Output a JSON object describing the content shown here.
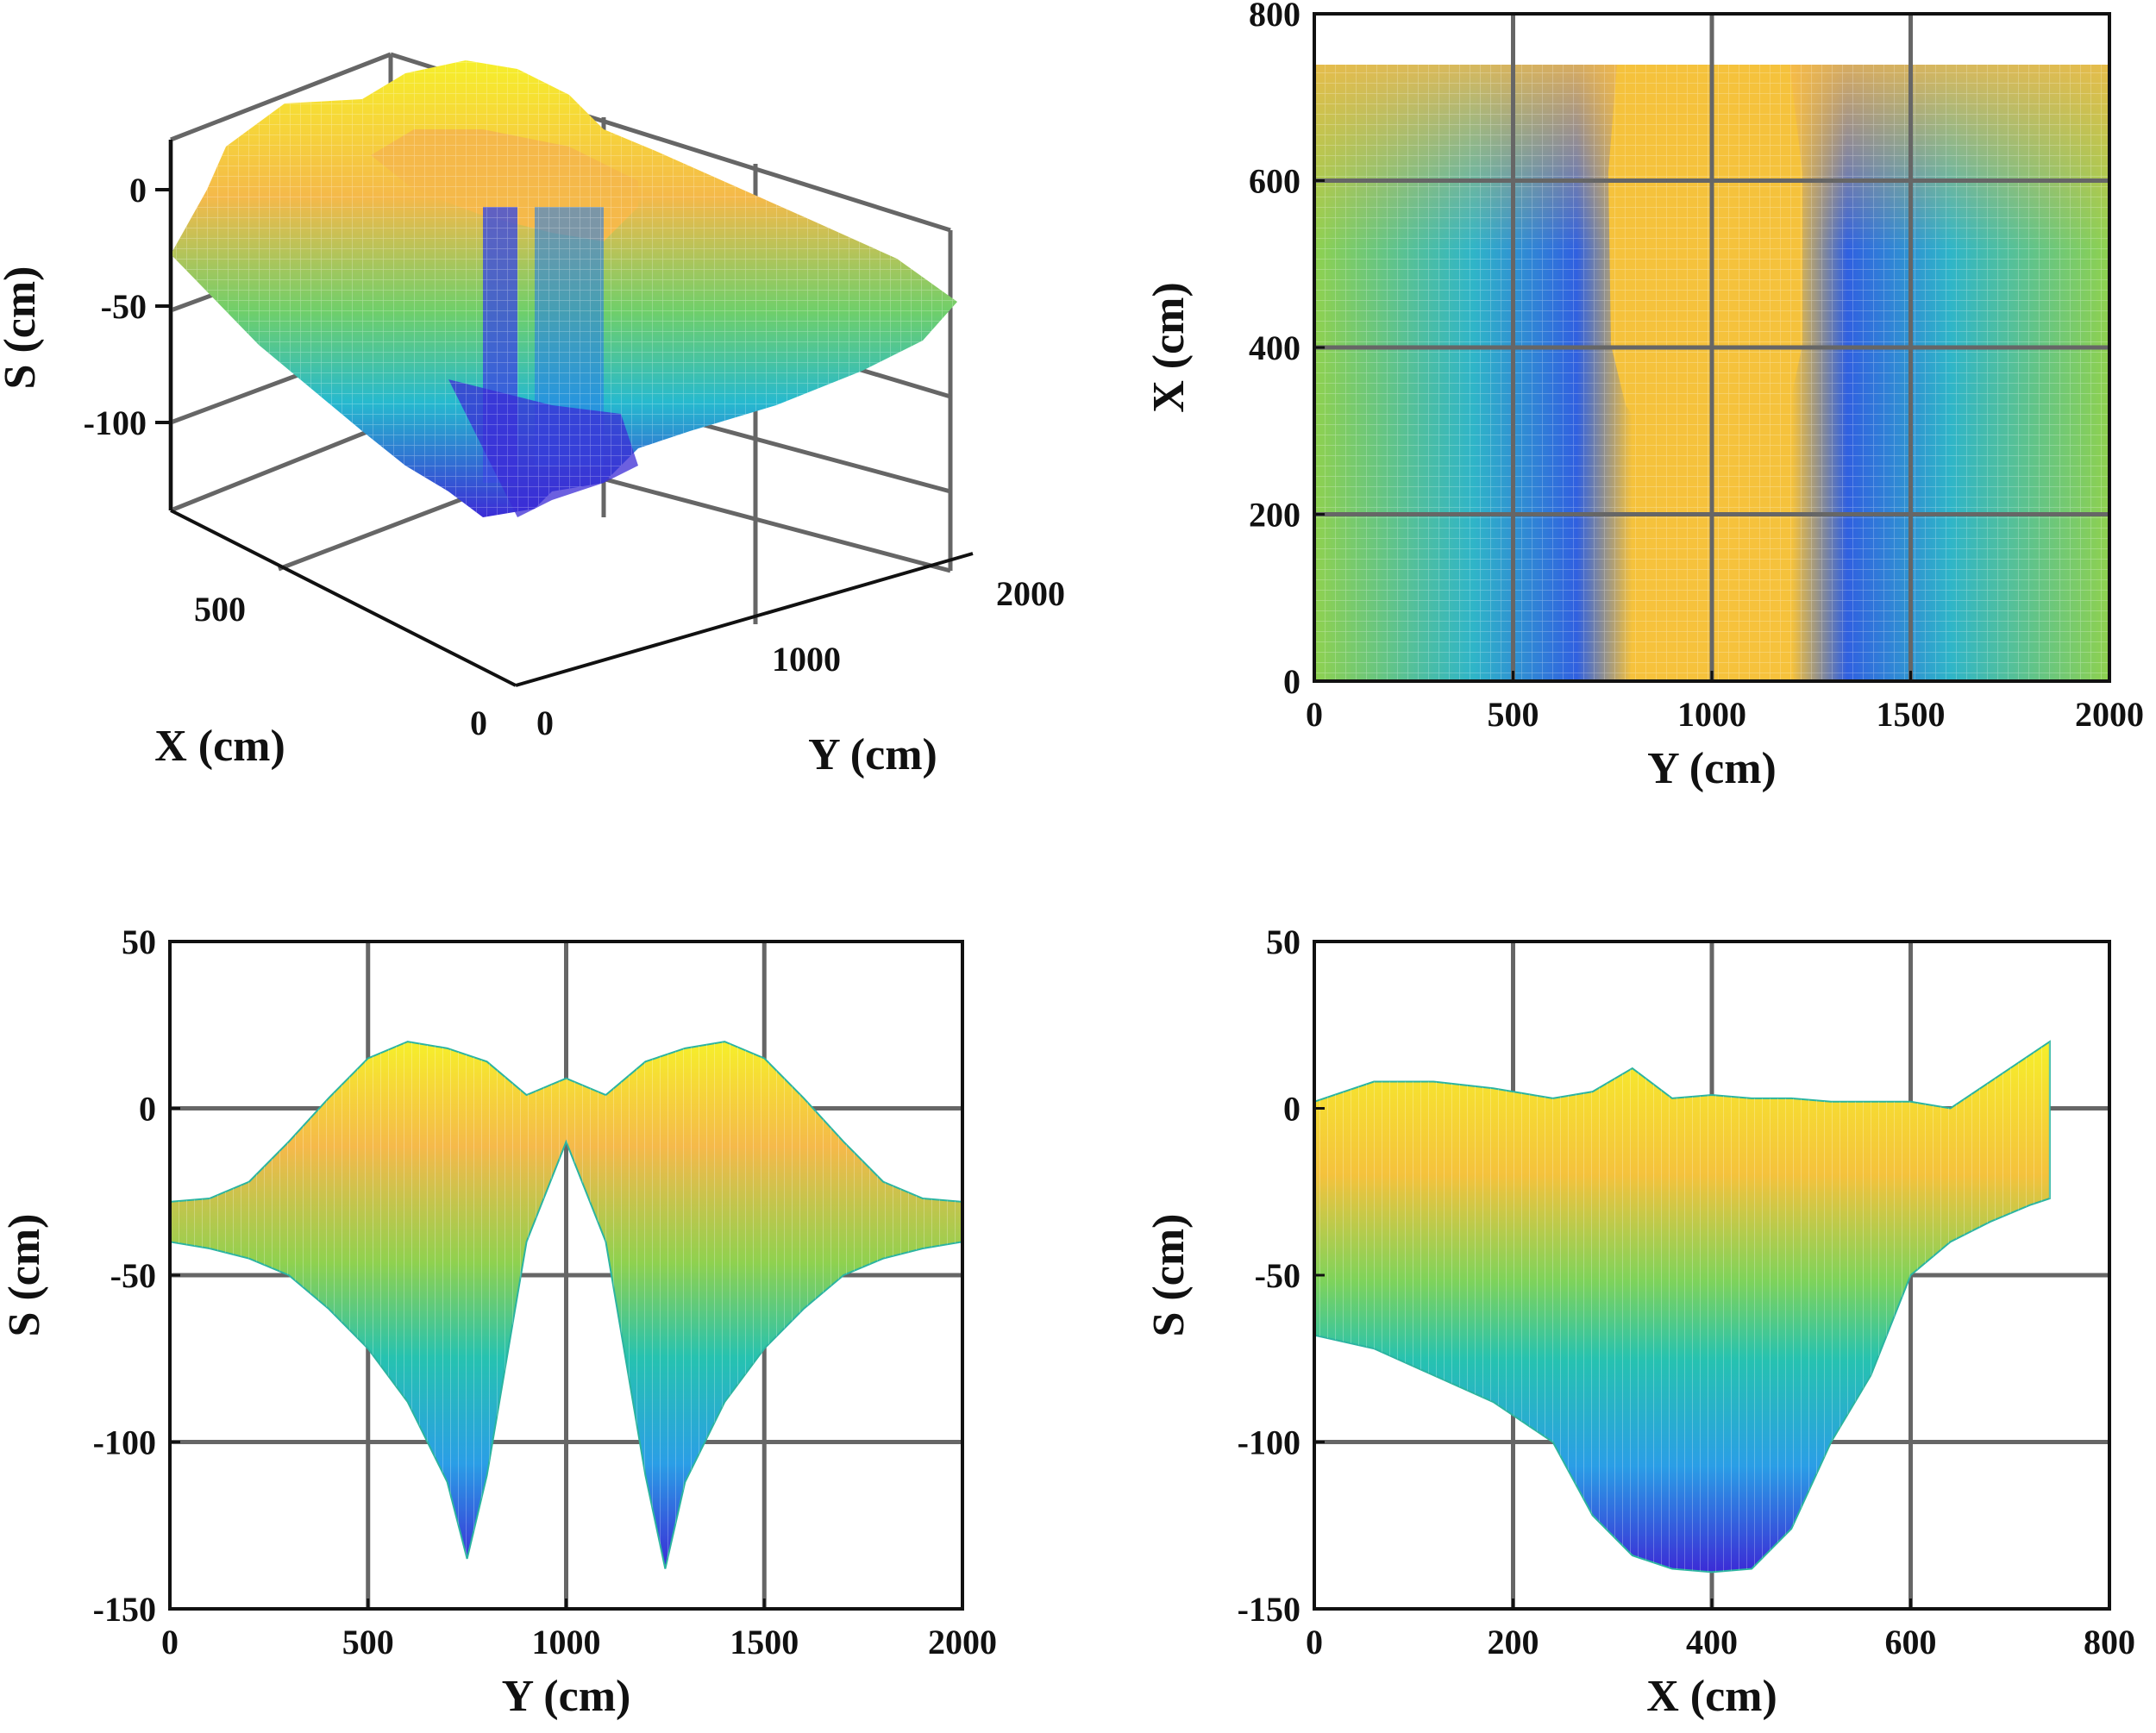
{
  "figure": {
    "panels": [
      "3D surface",
      "Top view",
      "S-Y projection",
      "S-X projection"
    ]
  },
  "colors": {
    "low": "#3b2bd6",
    "mid_low": "#2a9ee6",
    "mid": "#26c2b0",
    "mid_high": "#8fd14f",
    "high": "#f5c23c",
    "top": "#f6ef2a",
    "grid": "#666666",
    "axis": "#111111"
  },
  "chart_data": [
    {
      "type": "area",
      "view": "3d",
      "title": "",
      "xlabel": "X (cm)",
      "ylabel": "Y (cm)",
      "zlabel": "S (cm)",
      "x_ticks": [
        "0",
        "500"
      ],
      "y_ticks": [
        "0",
        "1000",
        "2000"
      ],
      "z_ticks": [
        "0",
        "-50",
        "-100"
      ],
      "xlim": [
        0,
        740
      ],
      "ylim": [
        0,
        2000
      ],
      "zlim": [
        -140,
        20
      ],
      "grid": true
    },
    {
      "type": "heatmap",
      "view": "top",
      "title": "",
      "xlabel": "Y (cm)",
      "ylabel": "X (cm)",
      "x_ticks": [
        "0",
        "500",
        "1000",
        "1500",
        "2000"
      ],
      "y_ticks": [
        "0",
        "200",
        "400",
        "600",
        "800"
      ],
      "xlim": [
        0,
        2000
      ],
      "ylim": [
        0,
        800
      ],
      "data_extent_x": [
        0,
        740
      ],
      "grid": true
    },
    {
      "type": "line",
      "view": "side-y",
      "title": "",
      "xlabel": "Y (cm)",
      "ylabel": "S (cm)",
      "x_ticks": [
        "0",
        "500",
        "1000",
        "1500",
        "2000"
      ],
      "y_ticks": [
        "50",
        "0",
        "-50",
        "-100",
        "-150"
      ],
      "xlim": [
        0,
        2000
      ],
      "ylim": [
        -150,
        50
      ],
      "envelope_y": [
        0,
        100,
        200,
        300,
        400,
        500,
        600,
        700,
        750,
        800,
        900,
        1000,
        1100,
        1200,
        1250,
        1300,
        1400,
        1500,
        1600,
        1700,
        1800,
        1900,
        2000
      ],
      "envelope_upper": [
        -28,
        -27,
        -22,
        -10,
        3,
        15,
        20,
        18,
        16,
        14,
        4,
        9,
        4,
        14,
        16,
        18,
        20,
        15,
        3,
        -10,
        -22,
        -27,
        -28
      ],
      "envelope_lower": [
        -40,
        -42,
        -45,
        -50,
        -60,
        -72,
        -88,
        -112,
        -135,
        -110,
        -40,
        -10,
        -40,
        -110,
        -138,
        -112,
        -88,
        -72,
        -60,
        -50,
        -45,
        -42,
        -40
      ],
      "grid": true
    },
    {
      "type": "line",
      "view": "side-x",
      "title": "",
      "xlabel": "X (cm)",
      "ylabel": "S (cm)",
      "x_ticks": [
        "0",
        "200",
        "400",
        "600",
        "800"
      ],
      "y_ticks": [
        "50",
        "0",
        "-50",
        "-100",
        "-150"
      ],
      "xlim": [
        0,
        800
      ],
      "ylim": [
        -150,
        50
      ],
      "envelope_x": [
        0,
        60,
        120,
        180,
        240,
        280,
        320,
        360,
        400,
        440,
        480,
        520,
        560,
        600,
        640,
        680,
        720,
        740
      ],
      "envelope_upper": [
        2,
        8,
        8,
        6,
        3,
        5,
        12,
        3,
        4,
        3,
        3,
        2,
        2,
        2,
        0,
        8,
        16,
        20
      ],
      "envelope_lower": [
        -68,
        -72,
        -80,
        -88,
        -100,
        -122,
        -134,
        -138,
        -139,
        -138,
        -126,
        -100,
        -80,
        -50,
        -40,
        -34,
        -29,
        -27
      ],
      "grid": true
    }
  ]
}
